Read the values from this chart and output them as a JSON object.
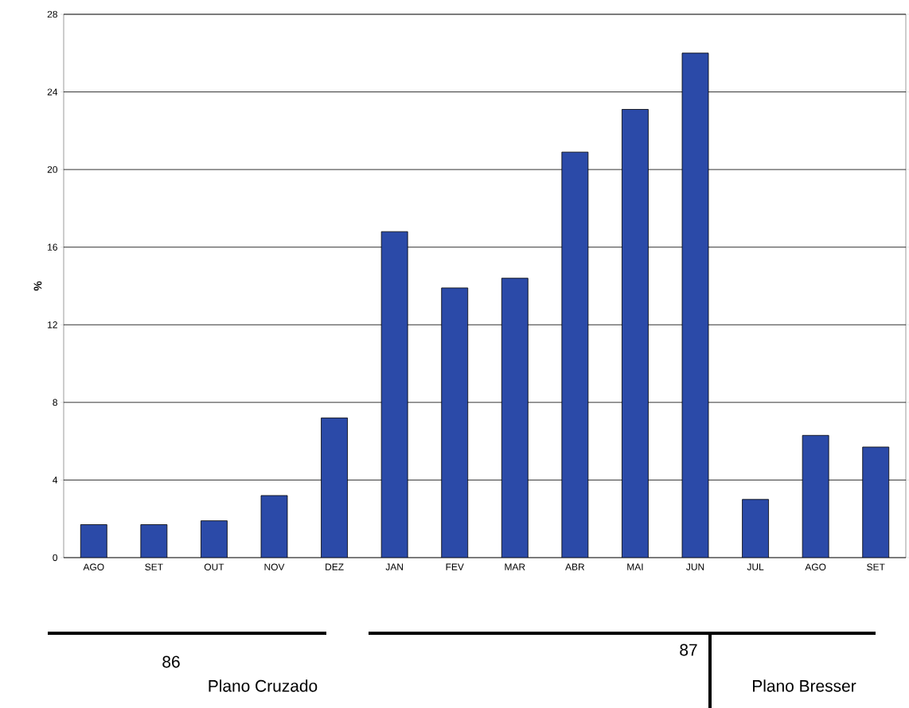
{
  "chart_data": {
    "type": "bar",
    "categories": [
      "AGO",
      "SET",
      "OUT",
      "NOV",
      "DEZ",
      "JAN",
      "FEV",
      "MAR",
      "ABR",
      "MAI",
      "JUN",
      "JUL",
      "AGO",
      "SET"
    ],
    "values": [
      1.7,
      1.7,
      1.9,
      3.2,
      7.2,
      16.8,
      13.9,
      14.4,
      20.9,
      23.1,
      26.0,
      3.0,
      6.3,
      5.7
    ],
    "color": "#2b4aa8",
    "ylabel": "%",
    "ylim": [
      0,
      28
    ],
    "yticks": [
      0,
      4,
      8,
      12,
      16,
      20,
      24,
      28
    ],
    "grid": "y",
    "annotations": [
      "86",
      "87",
      "Plano Cruzado",
      "Plano Bresser"
    ]
  }
}
